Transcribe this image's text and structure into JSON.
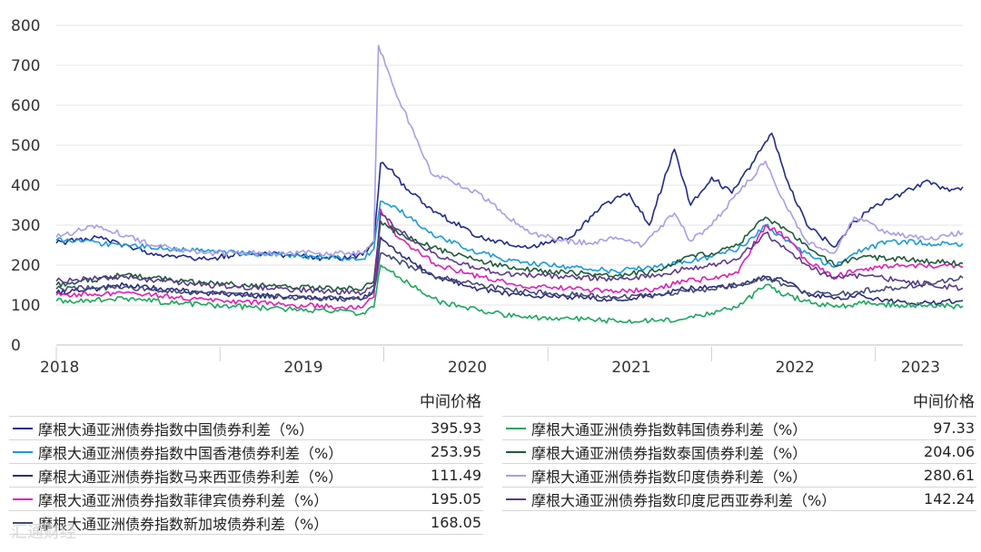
{
  "chart_data": {
    "type": "line",
    "title": "",
    "xlabel": "",
    "ylabel": "",
    "ylim": [
      0,
      800
    ],
    "yticks": [
      0,
      100,
      200,
      300,
      400,
      500,
      600,
      700,
      800
    ],
    "xlim": [
      "2018-01-01",
      "2023-07-15"
    ],
    "xticks": [
      {
        "label": "2018",
        "date": "2018-01-01"
      },
      {
        "label": "2019",
        "date": "2019-01-01"
      },
      {
        "label": "2020",
        "date": "2020-01-01"
      },
      {
        "label": "2021",
        "date": "2021-01-01"
      },
      {
        "label": "2022",
        "date": "2022-01-01"
      },
      {
        "label": "2023",
        "date": "2023-01-01"
      }
    ],
    "grid": "horizontal",
    "value_header": "中间价格",
    "series": [
      {
        "name": "摩根大通亚洲债券指数中国债券利差（%）",
        "color": "#1f2a8c",
        "last": "395.93",
        "points": [
          [
            "2018-01-01",
            255
          ],
          [
            "2018-04-01",
            270
          ],
          [
            "2018-08-01",
            230
          ],
          [
            "2018-12-01",
            215
          ],
          [
            "2019-03-01",
            230
          ],
          [
            "2019-06-01",
            225
          ],
          [
            "2019-09-01",
            215
          ],
          [
            "2019-11-15",
            225
          ],
          [
            "2019-12-10",
            260
          ],
          [
            "2019-12-25",
            455
          ],
          [
            "2020-01-15",
            440
          ],
          [
            "2020-03-01",
            380
          ],
          [
            "2020-05-01",
            330
          ],
          [
            "2020-08-01",
            270
          ],
          [
            "2020-11-01",
            245
          ],
          [
            "2021-01-01",
            255
          ],
          [
            "2021-03-01",
            275
          ],
          [
            "2021-05-01",
            350
          ],
          [
            "2021-07-01",
            380
          ],
          [
            "2021-08-15",
            300
          ],
          [
            "2021-10-10",
            490
          ],
          [
            "2021-11-15",
            350
          ],
          [
            "2022-01-01",
            420
          ],
          [
            "2022-02-15",
            380
          ],
          [
            "2022-04-01",
            455
          ],
          [
            "2022-05-15",
            530
          ],
          [
            "2022-06-15",
            420
          ],
          [
            "2022-08-01",
            300
          ],
          [
            "2022-10-01",
            245
          ],
          [
            "2022-11-15",
            310
          ],
          [
            "2023-01-01",
            350
          ],
          [
            "2023-03-01",
            380
          ],
          [
            "2023-05-01",
            410
          ],
          [
            "2023-06-15",
            385
          ],
          [
            "2023-07-15",
            396
          ]
        ]
      },
      {
        "name": "摩根大通亚洲债券指数中国香港债券利差（%）",
        "color": "#1a9ad6",
        "last": "253.95",
        "points": [
          [
            "2018-01-01",
            262
          ],
          [
            "2018-06-01",
            250
          ],
          [
            "2018-12-01",
            235
          ],
          [
            "2019-06-01",
            225
          ],
          [
            "2019-11-15",
            215
          ],
          [
            "2019-12-10",
            240
          ],
          [
            "2019-12-25",
            360
          ],
          [
            "2020-02-01",
            340
          ],
          [
            "2020-05-01",
            270
          ],
          [
            "2020-08-01",
            230
          ],
          [
            "2020-11-01",
            205
          ],
          [
            "2021-03-01",
            195
          ],
          [
            "2021-06-01",
            185
          ],
          [
            "2021-09-01",
            195
          ],
          [
            "2021-11-01",
            210
          ],
          [
            "2022-01-01",
            220
          ],
          [
            "2022-03-01",
            240
          ],
          [
            "2022-05-01",
            300
          ],
          [
            "2022-06-15",
            260
          ],
          [
            "2022-08-01",
            230
          ],
          [
            "2022-10-01",
            195
          ],
          [
            "2022-11-15",
            230
          ],
          [
            "2023-02-01",
            260
          ],
          [
            "2023-05-01",
            255
          ],
          [
            "2023-07-15",
            254
          ]
        ]
      },
      {
        "name": "摩根大通亚洲债券指数马来西亚债券利差（%）",
        "color": "#2b2d7a",
        "last": "111.49",
        "points": [
          [
            "2018-01-01",
            130
          ],
          [
            "2018-06-01",
            150
          ],
          [
            "2018-12-01",
            130
          ],
          [
            "2019-06-01",
            120
          ],
          [
            "2019-11-15",
            115
          ],
          [
            "2019-12-10",
            140
          ],
          [
            "2019-12-25",
            270
          ],
          [
            "2020-02-01",
            230
          ],
          [
            "2020-05-01",
            170
          ],
          [
            "2020-08-01",
            140
          ],
          [
            "2020-11-01",
            125
          ],
          [
            "2021-03-01",
            120
          ],
          [
            "2021-06-01",
            115
          ],
          [
            "2021-09-01",
            125
          ],
          [
            "2021-11-01",
            140
          ],
          [
            "2022-01-01",
            145
          ],
          [
            "2022-03-01",
            150
          ],
          [
            "2022-05-01",
            170
          ],
          [
            "2022-06-15",
            160
          ],
          [
            "2022-08-01",
            130
          ],
          [
            "2022-10-01",
            115
          ],
          [
            "2022-12-01",
            125
          ],
          [
            "2023-02-01",
            110
          ],
          [
            "2023-05-01",
            105
          ],
          [
            "2023-07-15",
            111
          ]
        ]
      },
      {
        "name": "摩根大通亚洲债券指数菲律宾债券利差（%）",
        "color": "#e01fb5",
        "last": "195.05",
        "points": [
          [
            "2018-01-01",
            125
          ],
          [
            "2018-06-01",
            130
          ],
          [
            "2018-12-01",
            115
          ],
          [
            "2019-06-01",
            100
          ],
          [
            "2019-11-15",
            95
          ],
          [
            "2019-12-10",
            120
          ],
          [
            "2019-12-25",
            340
          ],
          [
            "2020-02-01",
            270
          ],
          [
            "2020-05-01",
            200
          ],
          [
            "2020-08-01",
            170
          ],
          [
            "2020-11-01",
            150
          ],
          [
            "2021-03-01",
            140
          ],
          [
            "2021-06-01",
            135
          ],
          [
            "2021-09-01",
            140
          ],
          [
            "2021-11-01",
            160
          ],
          [
            "2022-01-01",
            165
          ],
          [
            "2022-03-01",
            180
          ],
          [
            "2022-05-01",
            300
          ],
          [
            "2022-06-15",
            270
          ],
          [
            "2022-08-01",
            210
          ],
          [
            "2022-10-01",
            170
          ],
          [
            "2022-12-01",
            190
          ],
          [
            "2023-03-01",
            200
          ],
          [
            "2023-07-15",
            195
          ]
        ]
      },
      {
        "name": "摩根大通亚洲债券指数新加坡债券利差（%）",
        "color": "#444a7a",
        "last": "168.05",
        "points": [
          [
            "2018-01-01",
            140
          ],
          [
            "2018-06-01",
            145
          ],
          [
            "2018-12-01",
            130
          ],
          [
            "2019-06-01",
            120
          ],
          [
            "2019-11-15",
            115
          ],
          [
            "2019-12-10",
            135
          ],
          [
            "2019-12-25",
            230
          ],
          [
            "2020-02-01",
            210
          ],
          [
            "2020-05-01",
            170
          ],
          [
            "2020-08-01",
            150
          ],
          [
            "2020-11-01",
            135
          ],
          [
            "2021-03-01",
            125
          ],
          [
            "2021-06-01",
            120
          ],
          [
            "2021-09-01",
            125
          ],
          [
            "2021-11-01",
            135
          ],
          [
            "2022-01-01",
            140
          ],
          [
            "2022-03-01",
            150
          ],
          [
            "2022-05-01",
            170
          ],
          [
            "2022-06-15",
            150
          ],
          [
            "2022-08-01",
            130
          ],
          [
            "2022-10-01",
            125
          ],
          [
            "2022-12-01",
            135
          ],
          [
            "2023-03-01",
            145
          ],
          [
            "2023-07-15",
            168
          ]
        ]
      },
      {
        "name": "摩根大通亚洲债券指数韩国债券利差（%）",
        "color": "#1aa85a",
        "last": "97.33",
        "points": [
          [
            "2018-01-01",
            110
          ],
          [
            "2018-06-01",
            115
          ],
          [
            "2018-12-01",
            100
          ],
          [
            "2019-06-01",
            90
          ],
          [
            "2019-11-15",
            80
          ],
          [
            "2019-12-10",
            95
          ],
          [
            "2019-12-25",
            200
          ],
          [
            "2020-02-01",
            170
          ],
          [
            "2020-05-01",
            110
          ],
          [
            "2020-08-01",
            85
          ],
          [
            "2020-11-01",
            70
          ],
          [
            "2021-03-01",
            65
          ],
          [
            "2021-06-01",
            60
          ],
          [
            "2021-09-01",
            60
          ],
          [
            "2021-11-01",
            65
          ],
          [
            "2022-01-01",
            80
          ],
          [
            "2022-03-01",
            95
          ],
          [
            "2022-05-01",
            150
          ],
          [
            "2022-06-15",
            125
          ],
          [
            "2022-08-01",
            110
          ],
          [
            "2022-10-01",
            95
          ],
          [
            "2022-12-01",
            105
          ],
          [
            "2023-03-01",
            100
          ],
          [
            "2023-07-15",
            97
          ]
        ]
      },
      {
        "name": "摩根大通亚洲债券指数泰国债券利差（%）",
        "color": "#1e5c3a",
        "last": "204.06",
        "points": [
          [
            "2018-01-01",
            150
          ],
          [
            "2018-06-01",
            175
          ],
          [
            "2018-12-01",
            155
          ],
          [
            "2019-06-01",
            145
          ],
          [
            "2019-11-15",
            140
          ],
          [
            "2019-12-10",
            160
          ],
          [
            "2019-12-25",
            310
          ],
          [
            "2020-02-01",
            280
          ],
          [
            "2020-05-01",
            240
          ],
          [
            "2020-08-01",
            210
          ],
          [
            "2020-11-01",
            190
          ],
          [
            "2021-03-01",
            180
          ],
          [
            "2021-06-01",
            175
          ],
          [
            "2021-09-01",
            185
          ],
          [
            "2021-11-01",
            220
          ],
          [
            "2022-01-01",
            230
          ],
          [
            "2022-03-01",
            250
          ],
          [
            "2022-05-01",
            320
          ],
          [
            "2022-06-15",
            290
          ],
          [
            "2022-08-01",
            250
          ],
          [
            "2022-10-01",
            200
          ],
          [
            "2022-12-01",
            220
          ],
          [
            "2023-03-01",
            215
          ],
          [
            "2023-07-15",
            204
          ]
        ]
      },
      {
        "name": "摩根大通亚洲债券指数印度债券利差（%）",
        "color": "#a89de8",
        "last": "280.61",
        "points": [
          [
            "2018-01-01",
            270
          ],
          [
            "2018-04-01",
            300
          ],
          [
            "2018-08-01",
            250
          ],
          [
            "2018-12-01",
            230
          ],
          [
            "2019-06-01",
            230
          ],
          [
            "2019-11-15",
            230
          ],
          [
            "2019-12-10",
            260
          ],
          [
            "2019-12-20",
            750
          ],
          [
            "2020-01-05",
            700
          ],
          [
            "2020-01-25",
            640
          ],
          [
            "2020-03-01",
            550
          ],
          [
            "2020-04-15",
            430
          ],
          [
            "2020-06-01",
            410
          ],
          [
            "2020-08-01",
            380
          ],
          [
            "2020-10-01",
            320
          ],
          [
            "2020-12-01",
            280
          ],
          [
            "2021-02-01",
            260
          ],
          [
            "2021-04-01",
            255
          ],
          [
            "2021-06-01",
            270
          ],
          [
            "2021-08-01",
            250
          ],
          [
            "2021-10-10",
            330
          ],
          [
            "2021-11-15",
            260
          ],
          [
            "2022-01-01",
            300
          ],
          [
            "2022-03-01",
            380
          ],
          [
            "2022-05-01",
            460
          ],
          [
            "2022-06-15",
            350
          ],
          [
            "2022-08-01",
            260
          ],
          [
            "2022-10-01",
            230
          ],
          [
            "2022-11-15",
            320
          ],
          [
            "2023-02-01",
            280
          ],
          [
            "2023-05-01",
            265
          ],
          [
            "2023-07-15",
            281
          ]
        ]
      },
      {
        "name": "摩根大通亚洲债券指数印度尼西亚券利差（%）",
        "color": "#5b3a8c",
        "last": "142.24",
        "points": [
          [
            "2018-01-01",
            160
          ],
          [
            "2018-06-01",
            170
          ],
          [
            "2018-12-01",
            150
          ],
          [
            "2019-06-01",
            140
          ],
          [
            "2019-11-15",
            130
          ],
          [
            "2019-12-10",
            150
          ],
          [
            "2019-12-25",
            330
          ],
          [
            "2020-02-01",
            290
          ],
          [
            "2020-05-01",
            220
          ],
          [
            "2020-08-01",
            190
          ],
          [
            "2020-11-01",
            175
          ],
          [
            "2021-03-01",
            170
          ],
          [
            "2021-06-01",
            165
          ],
          [
            "2021-09-01",
            175
          ],
          [
            "2021-11-01",
            190
          ],
          [
            "2022-01-01",
            200
          ],
          [
            "2022-03-01",
            215
          ],
          [
            "2022-05-01",
            280
          ],
          [
            "2022-06-15",
            240
          ],
          [
            "2022-08-01",
            200
          ],
          [
            "2022-10-01",
            165
          ],
          [
            "2022-12-01",
            175
          ],
          [
            "2023-03-01",
            160
          ],
          [
            "2023-07-15",
            142
          ]
        ]
      }
    ]
  },
  "watermark": "汇通财经"
}
